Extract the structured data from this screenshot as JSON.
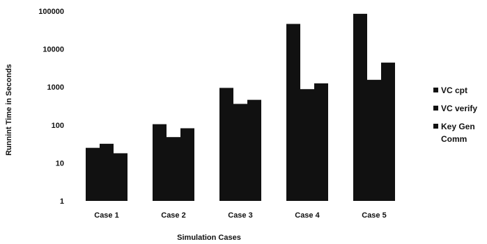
{
  "chart_data": {
    "type": "bar",
    "title": "",
    "xlabel": "Simulation Cases",
    "ylabel": "Runnint Time in Seconds",
    "y_scale": "log",
    "ylim": [
      1,
      100000
    ],
    "y_ticks": [
      "1",
      "10",
      "100",
      "1000",
      "10000",
      "100000"
    ],
    "categories": [
      "Case 1",
      "Case 2",
      "Case 3",
      "Case 4",
      "Case 5"
    ],
    "series": [
      {
        "name": "VC cpt",
        "values": [
          25,
          105,
          950,
          46000,
          85000
        ]
      },
      {
        "name": "VC verify",
        "values": [
          32,
          48,
          360,
          880,
          1550
        ]
      },
      {
        "name": "Key Gen Comm",
        "values": [
          18,
          82,
          460,
          1250,
          4400
        ]
      }
    ],
    "legend_position": "right",
    "grid": false,
    "bar_color": "#111111"
  }
}
